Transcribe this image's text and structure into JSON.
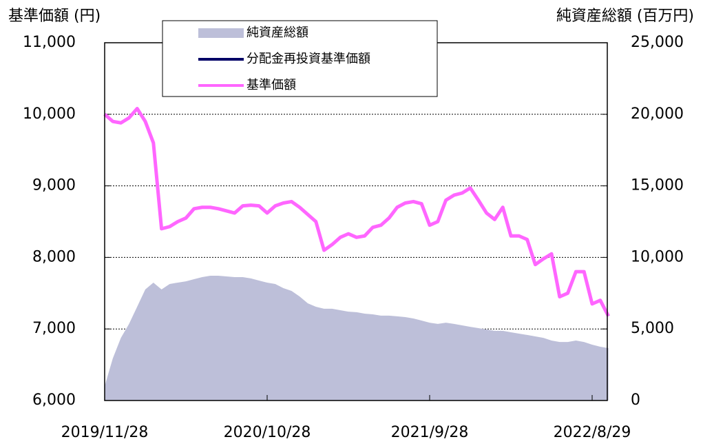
{
  "chart_data": {
    "type": "line",
    "y_label": "基準価額 (円)",
    "y2_label": "純資産総額 (百万円)",
    "categories": [
      "2019/11/28",
      null,
      null,
      null,
      null,
      null,
      null,
      null,
      null,
      null,
      null,
      null,
      null,
      null,
      null,
      null,
      null,
      null,
      null,
      null,
      "2020/10/28",
      null,
      null,
      null,
      null,
      null,
      null,
      null,
      null,
      null,
      null,
      null,
      null,
      null,
      null,
      null,
      null,
      null,
      null,
      null,
      "2021/9/28",
      null,
      null,
      null,
      null,
      null,
      null,
      null,
      null,
      null,
      null,
      null,
      null,
      null,
      null,
      null,
      null,
      null,
      null,
      null,
      "2022/8/29",
      null,
      null
    ],
    "series": [
      {
        "name": "純資産総額",
        "color": "#bdbfd9",
        "axis": "y2",
        "kind": "area",
        "values": [
          1000,
          2940,
          4380,
          5350,
          6550,
          7760,
          8240,
          7760,
          8140,
          8240,
          8330,
          8480,
          8620,
          8720,
          8720,
          8670,
          8620,
          8620,
          8530,
          8380,
          8240,
          8140,
          7850,
          7660,
          7270,
          6790,
          6550,
          6410,
          6410,
          6310,
          6210,
          6170,
          6070,
          6020,
          5930,
          5930,
          5880,
          5830,
          5730,
          5590,
          5440,
          5350,
          5440,
          5350,
          5250,
          5150,
          5060,
          4960,
          4870,
          4870,
          4770,
          4670,
          4580,
          4480,
          4380,
          4190,
          4090,
          4090,
          4190,
          4090,
          3900,
          3760,
          3660
        ]
      },
      {
        "name": "分配金再投資基準価額",
        "color": "#000066",
        "values": [
          10000,
          9900,
          9880,
          9950,
          10080,
          9900,
          9600,
          8400,
          8430,
          8500,
          8550,
          8680,
          8700,
          8700,
          8680,
          8650,
          8620,
          8720,
          8730,
          8720,
          8620,
          8720,
          8760,
          8780,
          8700,
          8600,
          8500,
          8100,
          8180,
          8280,
          8330,
          8280,
          8300,
          8420,
          8450,
          8550,
          8700,
          8760,
          8780,
          8750,
          8450,
          8500,
          8800,
          8870,
          8900,
          8970,
          8800,
          8620,
          8530,
          8700,
          8300,
          8300,
          8250,
          7900,
          7980,
          8050,
          7450,
          7500,
          7800,
          7800,
          7350,
          7400,
          7180
        ]
      },
      {
        "name": "基準価額",
        "color": "#ff66ff",
        "values": [
          10000,
          9900,
          9880,
          9950,
          10080,
          9900,
          9600,
          8400,
          8430,
          8500,
          8550,
          8680,
          8700,
          8700,
          8680,
          8650,
          8620,
          8720,
          8730,
          8720,
          8620,
          8720,
          8760,
          8780,
          8700,
          8600,
          8500,
          8100,
          8180,
          8280,
          8330,
          8280,
          8300,
          8420,
          8450,
          8550,
          8700,
          8760,
          8780,
          8750,
          8450,
          8500,
          8800,
          8870,
          8900,
          8970,
          8800,
          8620,
          8530,
          8700,
          8300,
          8300,
          8250,
          7900,
          7980,
          8050,
          7450,
          7500,
          7800,
          7800,
          7350,
          7400,
          7180
        ]
      }
    ],
    "ylim": [
      6000,
      11000
    ],
    "yticks": [
      {
        "value": 6000,
        "label": "6,000"
      },
      {
        "value": 7000,
        "label": "7,000"
      },
      {
        "value": 8000,
        "label": "8,000"
      },
      {
        "value": 9000,
        "label": "9,000"
      },
      {
        "value": 10000,
        "label": "10,000"
      },
      {
        "value": 11000,
        "label": "11,000"
      }
    ],
    "y2lim": [
      0,
      25000
    ],
    "y2ticks": [
      0,
      {
        "value": 5000,
        "label": "5,000"
      },
      {
        "value": 10000,
        "label": "10,000"
      },
      {
        "value": 15000,
        "label": "15,000"
      },
      {
        "value": 20000,
        "label": "20,000"
      },
      {
        "value": 25000,
        "label": "25,000"
      }
    ],
    "grid": true
  }
}
